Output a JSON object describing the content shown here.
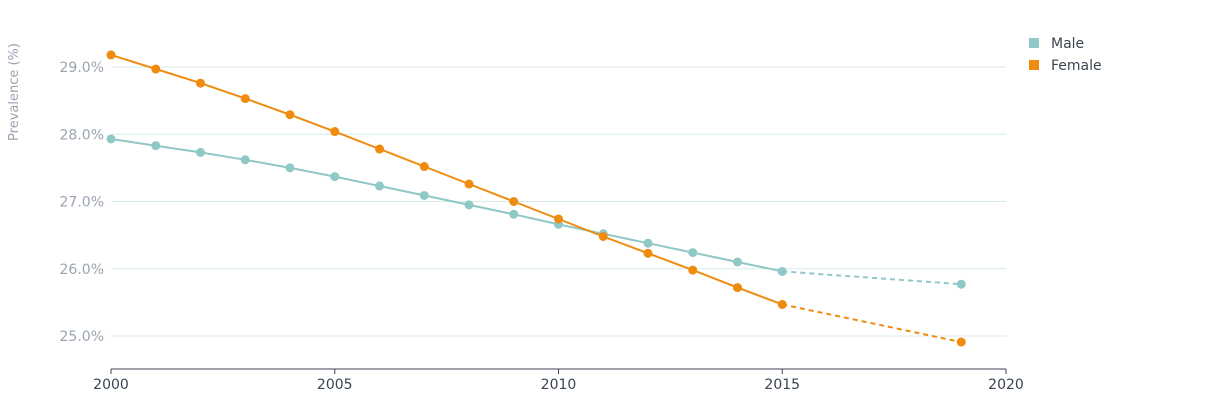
{
  "chart_data": {
    "type": "line",
    "ylabel": "Prevalence (%)",
    "xlabel": "",
    "xlim": [
      2000,
      2020
    ],
    "ylim": [
      24.5,
      29.8
    ],
    "x_ticks": [
      2000,
      2005,
      2010,
      2015,
      2020
    ],
    "x_tick_labels": [
      "2000",
      "2005",
      "2010",
      "2015",
      "2020"
    ],
    "y_ticks": [
      25,
      26,
      27,
      28,
      29
    ],
    "y_tick_labels": [
      "25.0%",
      "26.0%",
      "27.0%",
      "28.0%",
      "29.0%"
    ],
    "grid": true,
    "legend_position": "top-right",
    "series": [
      {
        "name": "Male",
        "color": "#8fc8c6",
        "x": [
          2000,
          2001,
          2002,
          2003,
          2004,
          2005,
          2006,
          2007,
          2008,
          2009,
          2010,
          2011,
          2012,
          2013,
          2014,
          2015
        ],
        "values": [
          27.93,
          27.83,
          27.73,
          27.62,
          27.5,
          27.37,
          27.23,
          27.09,
          26.95,
          26.81,
          26.66,
          26.52,
          26.38,
          26.24,
          26.1,
          25.96
        ],
        "projection": {
          "x": [
            2015,
            2019
          ],
          "values": [
            25.96,
            25.77
          ]
        }
      },
      {
        "name": "Female",
        "color": "#ef8c0f",
        "x": [
          2000,
          2001,
          2002,
          2003,
          2004,
          2005,
          2006,
          2007,
          2008,
          2009,
          2010,
          2011,
          2012,
          2013,
          2014,
          2015
        ],
        "values": [
          29.18,
          28.97,
          28.76,
          28.53,
          28.29,
          28.04,
          27.78,
          27.52,
          27.26,
          27.0,
          26.74,
          26.48,
          26.23,
          25.98,
          25.72,
          25.47
        ],
        "projection": {
          "x": [
            2015,
            2019
          ],
          "values": [
            25.47,
            24.91
          ]
        }
      }
    ]
  }
}
